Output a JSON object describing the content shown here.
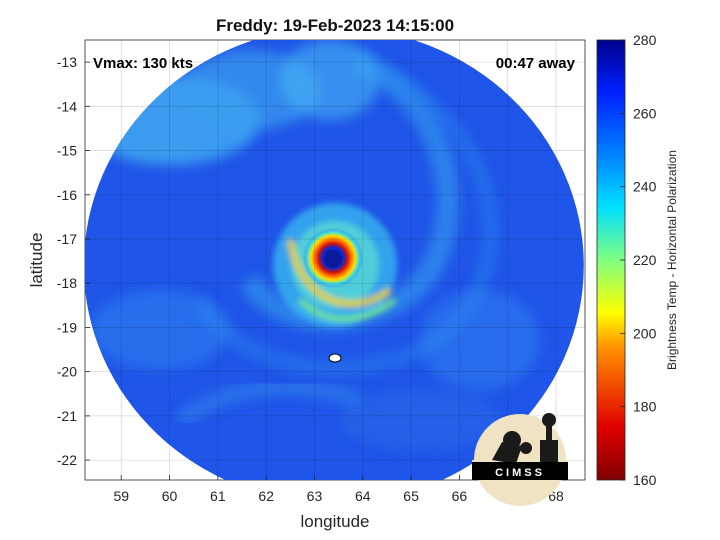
{
  "chart_data": {
    "type": "heatmap",
    "title": "Freddy: 19-Feb-2023 14:15:00",
    "xlabel": "longitude",
    "ylabel": "latitude",
    "xlim": [
      58.25,
      68.6
    ],
    "ylim": [
      -22.45,
      -12.5
    ],
    "xticks": [
      59,
      60,
      61,
      62,
      63,
      64,
      65,
      66,
      67,
      68
    ],
    "yticks": [
      -13,
      -14,
      -15,
      -16,
      -17,
      -18,
      -19,
      -20,
      -21,
      -22
    ],
    "grid": true,
    "annotations": {
      "left": "Vmax: 130 kts",
      "right": "00:47 away"
    },
    "storm_center": {
      "lon": 63.3,
      "lat": -17.5
    },
    "swath_center": {
      "lon": 63.4,
      "lat": -17.6
    },
    "colorbar": {
      "label": "Brightness Temp - Horizontal Polarization",
      "range": [
        160,
        280
      ],
      "ticks": [
        160,
        180,
        200,
        220,
        240,
        260,
        280
      ],
      "colormap": "jet"
    },
    "logo_text": "CIMSS"
  },
  "colors": {
    "background_field": "#1f55e8",
    "cold_ring": "#e0201a",
    "eye": "#0a1fb0",
    "spiral_band": "#3aa8f0"
  }
}
